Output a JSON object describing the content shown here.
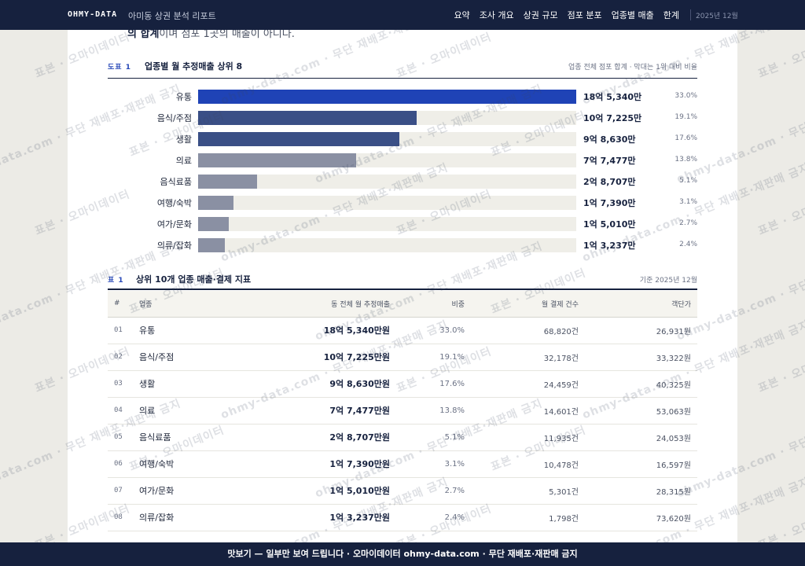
{
  "header": {
    "brand": "OHMY-DATA",
    "report_title": "아미동 상권 분석 리포트",
    "nav": [
      "요약",
      "조사 개요",
      "상권 규모",
      "점포 분포",
      "업종별 매출",
      "한계"
    ],
    "date": "2025년 12월"
  },
  "intro": {
    "bold": "의 합계",
    "rest": "이며 점포 1곳의 매출이 아니다."
  },
  "figure": {
    "tag": "도표 1",
    "title": "업종별 월 추정매출 상위 8",
    "note": "업종 전체 점포 합계 · 막대는 1위 대비 비율"
  },
  "chart_data": {
    "type": "bar",
    "title": "업종별 월 추정매출 상위 8",
    "categories": [
      "유통",
      "음식/주점",
      "생활",
      "의료",
      "음식료품",
      "여행/숙박",
      "여가/문화",
      "의류/잡화"
    ],
    "values": [
      185340,
      107225,
      98630,
      77477,
      28707,
      17390,
      15010,
      13237
    ],
    "value_labels": [
      "18억 5,340만",
      "10억 7,225만",
      "9억 8,630만",
      "7억 7,477만",
      "2억 8,707만",
      "1억 7,390만",
      "1억 5,010만",
      "1억 3,237만"
    ],
    "share_labels": [
      "33.0%",
      "19.1%",
      "17.6%",
      "13.8%",
      "5.1%",
      "3.1%",
      "2.7%",
      "2.4%"
    ],
    "colors": [
      "#1f43b6",
      "#3a4f86",
      "#3a4f86",
      "#8a90a3",
      "#8a90a3",
      "#8a90a3",
      "#8a90a3",
      "#8a90a3"
    ],
    "unit": "만원"
  },
  "table": {
    "tag": "표 1",
    "title": "상위 10개 업종 매출·결제 지표",
    "note": "기준 2025년 12월",
    "headers": [
      "#",
      "업종",
      "동 전체 월 추정매출",
      "비중",
      "월 결제 건수",
      "객단가"
    ],
    "rows": [
      [
        "01",
        "유통",
        "18억 5,340만원",
        "33.0%",
        "68,820건",
        "26,931원"
      ],
      [
        "02",
        "음식/주점",
        "10억 7,225만원",
        "19.1%",
        "32,178건",
        "33,322원"
      ],
      [
        "03",
        "생활",
        "9억 8,630만원",
        "17.6%",
        "24,459건",
        "40,325원"
      ],
      [
        "04",
        "의료",
        "7억 7,477만원",
        "13.8%",
        "14,601건",
        "53,063원"
      ],
      [
        "05",
        "음식료품",
        "2억 8,707만원",
        "5.1%",
        "11,935건",
        "24,053원"
      ],
      [
        "06",
        "여행/숙박",
        "1억 7,390만원",
        "3.1%",
        "10,478건",
        "16,597원"
      ],
      [
        "07",
        "여가/문화",
        "1억 5,010만원",
        "2.7%",
        "5,301건",
        "28,315원"
      ],
      [
        "08",
        "의류/잡화",
        "1억 3,237만원",
        "2.4%",
        "1,798건",
        "73,620원"
      ]
    ]
  },
  "watermark": [
    "표본 · 오마이데이터",
    "ohmy-data.com · 무단 재배포·재판매 금지"
  ],
  "banner": "맛보기 — 일부만 보여 드립니다 · 오마이데이터 ohmy-data.com · 무단 재배포·재판매 금지"
}
